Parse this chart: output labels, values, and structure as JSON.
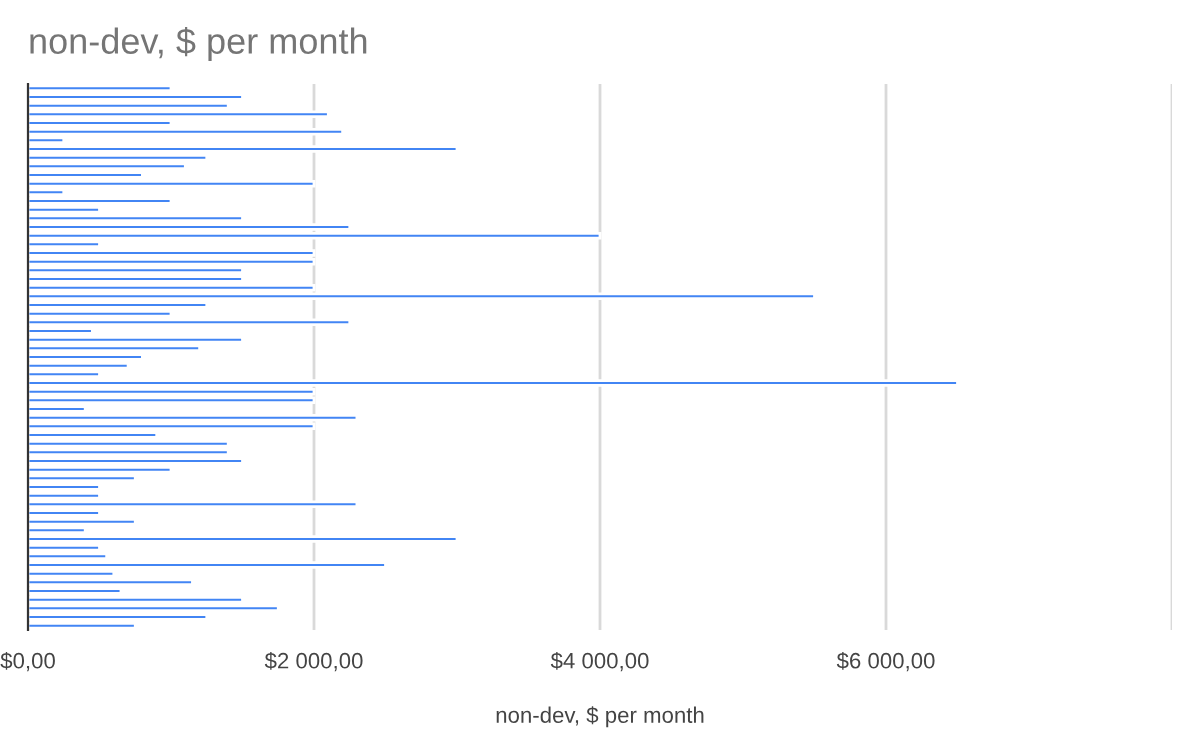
{
  "chart_data": {
    "type": "bar",
    "orientation": "horizontal",
    "title": "non-dev, $ per month",
    "xlabel": "non-dev, $ per month",
    "categories": [
      null,
      null,
      null,
      null,
      null,
      null,
      null,
      null,
      null,
      null,
      null,
      null,
      null,
      null,
      null,
      null,
      null,
      null,
      null,
      null,
      null,
      null,
      null,
      null,
      null,
      null,
      null,
      null,
      null,
      null,
      null,
      null,
      null,
      null,
      null,
      null,
      null,
      null,
      null,
      null,
      null,
      null,
      null,
      null,
      null,
      null,
      null,
      null,
      null,
      null,
      null,
      null,
      null,
      null,
      null,
      null,
      null,
      null,
      null,
      null,
      null,
      null,
      null
    ],
    "values": [
      1000,
      1500,
      1400,
      2100,
      1000,
      2200,
      250,
      3000,
      1250,
      1100,
      800,
      2000,
      250,
      1000,
      500,
      1500,
      2250,
      4000,
      500,
      2000,
      2000,
      1500,
      1500,
      2000,
      5500,
      1250,
      1000,
      2250,
      450,
      1500,
      1200,
      800,
      700,
      500,
      6500,
      2000,
      2000,
      400,
      2300,
      2000,
      900,
      1400,
      1400,
      1500,
      1000,
      750,
      500,
      500,
      2300,
      500,
      750,
      400,
      3000,
      500,
      550,
      2500,
      600,
      1150,
      650,
      1500,
      1750,
      1250,
      750
    ],
    "color": "#4285f4",
    "xlim": [
      0,
      8000
    ],
    "xticks": [
      {
        "value": 0,
        "label": "$0,00"
      },
      {
        "value": 2000,
        "label": "$2 000,00"
      },
      {
        "value": 4000,
        "label": "$4 000,00"
      },
      {
        "value": 6000,
        "label": "$6 000,00"
      },
      {
        "value": 8000,
        "label": null
      }
    ],
    "grid": "x",
    "legend": false
  }
}
